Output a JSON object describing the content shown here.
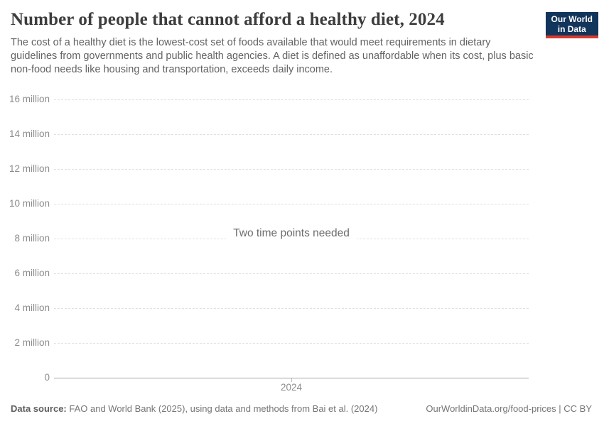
{
  "header": {
    "title": "Number of people that cannot afford a healthy diet, 2024",
    "subtitle": "The cost of a healthy diet is the lowest-cost set of foods available that would meet requirements in dietary guidelines from governments and public health agencies. A diet is defined as unaffordable when its cost, plus basic non-food needs like housing and transportation, exceeds daily income.",
    "logo": {
      "line1": "Our World",
      "line2": "in Data",
      "bg_color": "#12355b",
      "stripe_color": "#d9392e"
    }
  },
  "chart_data": {
    "type": "line",
    "title": "Number of people that cannot afford a healthy diet, 2024",
    "message": "Two time points needed",
    "x": [
      2024
    ],
    "xticks": [
      "2024"
    ],
    "series": [],
    "ylim": [
      0,
      16000000
    ],
    "yticks": [
      {
        "value": 0,
        "label": "0"
      },
      {
        "value": 2000000,
        "label": "2 million"
      },
      {
        "value": 4000000,
        "label": "4 million"
      },
      {
        "value": 6000000,
        "label": "6 million"
      },
      {
        "value": 8000000,
        "label": "8 million"
      },
      {
        "value": 10000000,
        "label": "10 million"
      },
      {
        "value": 12000000,
        "label": "12 million"
      },
      {
        "value": 14000000,
        "label": "14 million"
      },
      {
        "value": 16000000,
        "label": "16 million"
      }
    ],
    "grid": true,
    "legend": "none",
    "gridline_color": "#e0e0e0",
    "axis_color": "#a3a3a3",
    "tick_label_color": "#8c8c8c"
  },
  "footer": {
    "source_label": "Data source:",
    "source_text": "FAO and World Bank (2025), using data and methods from Bai et al. (2024)",
    "url": "OurWorldinData.org/food-prices",
    "separator": " | ",
    "license": "CC BY"
  }
}
